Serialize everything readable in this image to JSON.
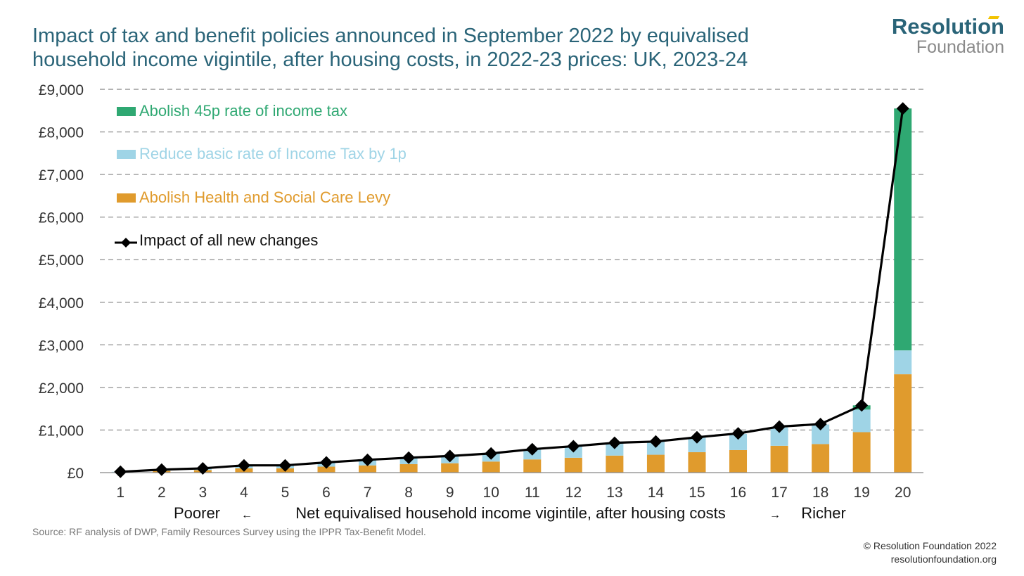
{
  "header": {
    "title_line1": "Impact of tax and benefit policies announced in September 2022 by equivalised",
    "title_line2": "household income vigintile, after housing costs, in 2022-23 prices: UK, 2023-24"
  },
  "logo": {
    "top": "Resolution",
    "bottom": "Foundation"
  },
  "footer": {
    "source": "Source: RF analysis of DWP, Family Resources Survey using the IPPR Tax-Benefit Model.",
    "copyright": "© Resolution Foundation 2022",
    "url": "resolutionfoundation.org"
  },
  "chart_data": {
    "type": "bar",
    "stacked": true,
    "categories": [
      "1",
      "2",
      "3",
      "4",
      "5",
      "6",
      "7",
      "8",
      "9",
      "10",
      "11",
      "12",
      "13",
      "14",
      "15",
      "16",
      "17",
      "18",
      "19",
      "20"
    ],
    "series": [
      {
        "name": "Abolish Health and Social Care Levy",
        "color": "#e09b2d",
        "values": [
          10,
          40,
          60,
          100,
          100,
          140,
          170,
          200,
          220,
          260,
          310,
          350,
          400,
          420,
          480,
          530,
          630,
          670,
          950,
          2310
        ]
      },
      {
        "name": "Reduce basic rate of Income Tax by 1p",
        "color": "#9fd4e6",
        "values": [
          10,
          30,
          40,
          70,
          70,
          100,
          130,
          150,
          170,
          190,
          230,
          270,
          300,
          310,
          340,
          380,
          430,
          460,
          530,
          560
        ]
      },
      {
        "name": "Abolish 45p rate of income tax",
        "color": "#2fa872",
        "values": [
          0,
          0,
          0,
          0,
          0,
          0,
          0,
          0,
          0,
          0,
          0,
          0,
          0,
          0,
          0,
          0,
          0,
          0,
          100,
          5680
        ]
      }
    ],
    "line": {
      "name": "Impact of all new changes",
      "color": "#000000",
      "values": [
        20,
        70,
        100,
        170,
        170,
        240,
        300,
        350,
        390,
        450,
        550,
        620,
        700,
        730,
        830,
        920,
        1080,
        1140,
        1580,
        8550
      ]
    },
    "y_ticks": [
      "£0",
      "£1,000",
      "£2,000",
      "£3,000",
      "£4,000",
      "£5,000",
      "£6,000",
      "£7,000",
      "£8,000",
      "£9,000"
    ],
    "ylim": [
      0,
      9000
    ],
    "xlabel": {
      "left": "Poorer",
      "left_arrow": "←",
      "center": "Net equivalised household income vigintile, after housing costs",
      "right_arrow": "→",
      "right": "Richer"
    },
    "grid": "horizontal-dashed",
    "legend_position": "top-left",
    "legend_order": [
      2,
      1,
      0
    ]
  }
}
